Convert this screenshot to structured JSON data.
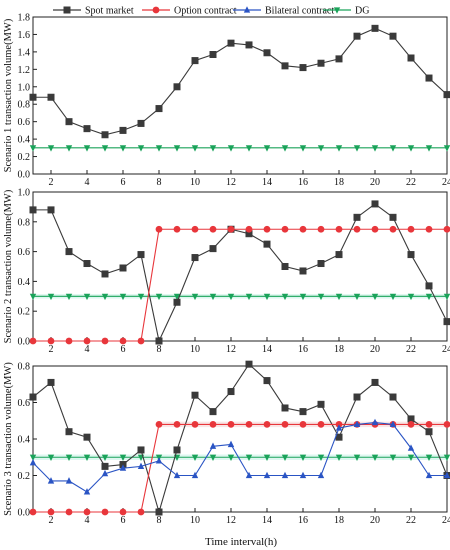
{
  "legend": [
    {
      "label": "Spot market",
      "color": "#3a3a3a",
      "marker": "square"
    },
    {
      "label": "Option contract",
      "color": "#e8363b",
      "marker": "circle"
    },
    {
      "label": "Bilateral contract",
      "color": "#2a54c4",
      "marker": "triangle-up"
    },
    {
      "label": "DG",
      "color": "#1aa35a",
      "marker": "triangle-down"
    }
  ],
  "xlabel": "Time interval(h)",
  "chart_data": [
    {
      "type": "line",
      "ylabel": "Scenario 1 transaction volume(MW)",
      "x": [
        1,
        2,
        3,
        4,
        5,
        6,
        7,
        8,
        9,
        10,
        11,
        12,
        13,
        14,
        15,
        16,
        17,
        18,
        19,
        20,
        21,
        22,
        23,
        24
      ],
      "xticks": [
        2,
        4,
        6,
        8,
        10,
        12,
        14,
        16,
        18,
        20,
        22,
        24
      ],
      "xlim": [
        1,
        24
      ],
      "ylim": [
        0.0,
        1.8
      ],
      "yticks": [
        0.0,
        0.2,
        0.4,
        0.6,
        0.8,
        1.0,
        1.2,
        1.4,
        1.6,
        1.8
      ],
      "yticklabels": [
        "0.0",
        "0.2",
        "0.4",
        "0.6",
        "0.8",
        "1.0",
        "1.2",
        "1.4",
        "1.6",
        "1.8"
      ],
      "series": [
        {
          "name": "Spot market",
          "color": "#3a3a3a",
          "marker": "square",
          "values": [
            0.88,
            0.88,
            0.6,
            0.52,
            0.45,
            0.5,
            0.58,
            0.75,
            1.0,
            1.3,
            1.37,
            1.5,
            1.48,
            1.39,
            1.24,
            1.22,
            1.27,
            1.32,
            1.58,
            1.67,
            1.58,
            1.33,
            1.1,
            0.91
          ]
        },
        {
          "name": "DG",
          "color": "#1aa35a",
          "marker": "triangle-down",
          "values": [
            0.3,
            0.3,
            0.3,
            0.3,
            0.3,
            0.3,
            0.3,
            0.3,
            0.3,
            0.3,
            0.3,
            0.3,
            0.3,
            0.3,
            0.3,
            0.3,
            0.3,
            0.3,
            0.3,
            0.3,
            0.3,
            0.3,
            0.3,
            0.3
          ]
        }
      ]
    },
    {
      "type": "line",
      "ylabel": "Scenario 2 transaction volume(MW)",
      "x": [
        1,
        2,
        3,
        4,
        5,
        6,
        7,
        8,
        9,
        10,
        11,
        12,
        13,
        14,
        15,
        16,
        17,
        18,
        19,
        20,
        21,
        22,
        23,
        24
      ],
      "xticks": [
        2,
        4,
        6,
        8,
        10,
        12,
        14,
        16,
        18,
        20,
        22,
        24
      ],
      "xlim": [
        1,
        24
      ],
      "ylim": [
        0.0,
        1.0
      ],
      "yticks": [
        0.0,
        0.2,
        0.4,
        0.6,
        0.8,
        1.0
      ],
      "yticklabels": [
        "0.0",
        "0.2",
        "0.4",
        "0.6",
        "0.8",
        "1.0"
      ],
      "series": [
        {
          "name": "Spot market",
          "color": "#3a3a3a",
          "marker": "square",
          "values": [
            0.88,
            0.88,
            0.6,
            0.52,
            0.45,
            0.49,
            0.58,
            0.0,
            0.26,
            0.56,
            0.62,
            0.75,
            0.72,
            0.65,
            0.5,
            0.47,
            0.52,
            0.58,
            0.83,
            0.92,
            0.83,
            0.58,
            0.37,
            0.13
          ]
        },
        {
          "name": "Option contract",
          "color": "#e8363b",
          "marker": "circle",
          "values": [
            0.0,
            0.0,
            0.0,
            0.0,
            0.0,
            0.0,
            0.0,
            0.75,
            0.75,
            0.75,
            0.75,
            0.75,
            0.75,
            0.75,
            0.75,
            0.75,
            0.75,
            0.75,
            0.75,
            0.75,
            0.75,
            0.75,
            0.75,
            0.75
          ]
        },
        {
          "name": "DG",
          "color": "#1aa35a",
          "marker": "triangle-down",
          "values": [
            0.3,
            0.3,
            0.3,
            0.3,
            0.3,
            0.3,
            0.3,
            0.3,
            0.3,
            0.3,
            0.3,
            0.3,
            0.3,
            0.3,
            0.3,
            0.3,
            0.3,
            0.3,
            0.3,
            0.3,
            0.3,
            0.3,
            0.3,
            0.3
          ]
        }
      ]
    },
    {
      "type": "line",
      "ylabel": "Scenario 3 transaction volume(MW)",
      "x": [
        1,
        2,
        3,
        4,
        5,
        6,
        7,
        8,
        9,
        10,
        11,
        12,
        13,
        14,
        15,
        16,
        17,
        18,
        19,
        20,
        21,
        22,
        23,
        24
      ],
      "xticks": [
        2,
        4,
        6,
        8,
        10,
        12,
        14,
        16,
        18,
        20,
        22,
        24
      ],
      "xlim": [
        1,
        24
      ],
      "ylim": [
        0.0,
        0.8
      ],
      "yticks": [
        0.0,
        0.2,
        0.4,
        0.6,
        0.8
      ],
      "yticklabels": [
        "0.0",
        "0.2",
        "0.4",
        "0.6",
        "0.8"
      ],
      "series": [
        {
          "name": "Spot market",
          "color": "#3a3a3a",
          "marker": "square",
          "values": [
            0.63,
            0.71,
            0.44,
            0.41,
            0.25,
            0.26,
            0.34,
            0.0,
            0.34,
            0.64,
            0.55,
            0.66,
            0.81,
            0.72,
            0.57,
            0.55,
            0.59,
            0.41,
            0.63,
            0.71,
            0.63,
            0.51,
            0.44,
            0.2
          ]
        },
        {
          "name": "Option contract",
          "color": "#e8363b",
          "marker": "circle",
          "values": [
            0.0,
            0.0,
            0.0,
            0.0,
            0.0,
            0.0,
            0.0,
            0.48,
            0.48,
            0.48,
            0.48,
            0.48,
            0.48,
            0.48,
            0.48,
            0.48,
            0.48,
            0.48,
            0.48,
            0.48,
            0.48,
            0.48,
            0.48,
            0.48
          ]
        },
        {
          "name": "Bilateral contract",
          "color": "#2a54c4",
          "marker": "triangle-up",
          "values": [
            0.27,
            0.17,
            0.17,
            0.11,
            0.21,
            0.24,
            0.25,
            0.28,
            0.2,
            0.2,
            0.36,
            0.37,
            0.2,
            0.2,
            0.2,
            0.2,
            0.2,
            0.46,
            0.48,
            0.49,
            0.48,
            0.35,
            0.2,
            0.2
          ]
        },
        {
          "name": "DG",
          "color": "#1aa35a",
          "marker": "triangle-down",
          "values": [
            0.3,
            0.3,
            0.3,
            0.3,
            0.3,
            0.3,
            0.3,
            0.3,
            0.3,
            0.3,
            0.3,
            0.3,
            0.3,
            0.3,
            0.3,
            0.3,
            0.3,
            0.3,
            0.3,
            0.3,
            0.3,
            0.3,
            0.3,
            0.3
          ]
        }
      ]
    }
  ]
}
